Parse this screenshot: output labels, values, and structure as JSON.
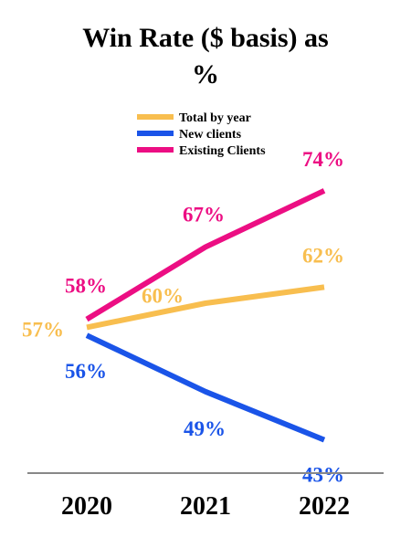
{
  "chart_data": {
    "type": "line",
    "title_line1": "Win Rate ($ basis) as",
    "title_line2": "%",
    "categories": [
      "2020",
      "2021",
      "2022"
    ],
    "ylim": [
      40,
      76
    ],
    "grid": false,
    "legend_position": "top-center",
    "series": [
      {
        "name": "Total by year",
        "values": [
          57,
          60,
          62
        ],
        "labels": [
          "57%",
          "60%",
          "62%"
        ],
        "color": "#F8BE4F"
      },
      {
        "name": "New clients",
        "values": [
          56,
          49,
          43
        ],
        "labels": [
          "56%",
          "49%",
          "43%"
        ],
        "color": "#1A54E8"
      },
      {
        "name": "Existing Clients",
        "values": [
          58,
          67,
          74
        ],
        "labels": [
          "58%",
          "67%",
          "74%"
        ],
        "color": "#EC0E83"
      }
    ]
  }
}
